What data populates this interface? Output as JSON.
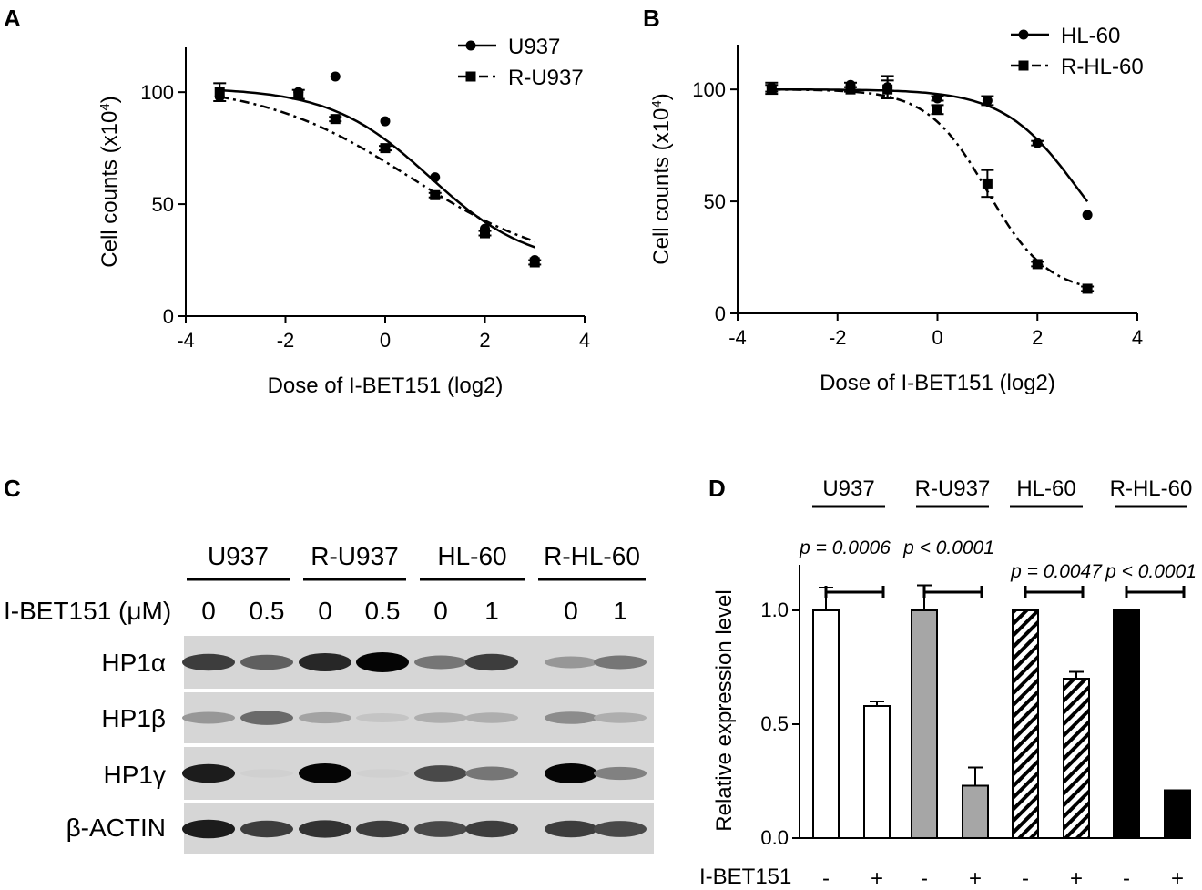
{
  "panels": {
    "A": "A",
    "B": "B",
    "C": "C",
    "D": "D"
  },
  "chart_data": [
    {
      "id": "A",
      "type": "line",
      "xlabel": "Dose of I-BET151 (log2)",
      "ylabel": "Cell counts (x10",
      "ylabel_sup": "4",
      "ylabel_end": ")",
      "xlim": [
        -4,
        4
      ],
      "ylim": [
        0,
        120
      ],
      "xticks": [
        -4,
        -2,
        0,
        2,
        4
      ],
      "yticks": [
        0,
        50,
        100
      ],
      "legend_position": "top-right",
      "series": [
        {
          "name": "U937",
          "marker": "circle",
          "line": "solid",
          "points": [
            [
              -3.32,
              98
            ],
            [
              -1.74,
              100
            ],
            [
              -1.0,
              107
            ],
            [
              0,
              87
            ],
            [
              1.0,
              62
            ],
            [
              2.0,
              39
            ],
            [
              3.0,
              25
            ]
          ],
          "errors": [
            0,
            0,
            0,
            0,
            0,
            0,
            0
          ],
          "fit": {
            "top": 102,
            "bottom": 22,
            "ec50": 0.9,
            "hill": 0.9
          }
        },
        {
          "name": "R-U937",
          "marker": "square",
          "line": "dashdot",
          "points": [
            [
              -3.32,
              100
            ],
            [
              -1.74,
              99
            ],
            [
              -1.0,
              88
            ],
            [
              0,
              75
            ],
            [
              1.0,
              54
            ],
            [
              2.0,
              37
            ],
            [
              3.0,
              24
            ]
          ],
          "errors": [
            4,
            2,
            1,
            1,
            1,
            1,
            1
          ],
          "fit": {
            "top": 104,
            "bottom": 20,
            "ec50": 0.5,
            "hill": 0.6
          }
        }
      ]
    },
    {
      "id": "B",
      "type": "line",
      "xlabel": "Dose of I-BET151 (log2)",
      "ylabel": "Cell counts (x10",
      "ylabel_sup": "4",
      "ylabel_end": ")",
      "xlim": [
        -4,
        4
      ],
      "ylim": [
        0,
        120
      ],
      "xticks": [
        -4,
        -2,
        0,
        2,
        4
      ],
      "yticks": [
        0,
        50,
        100
      ],
      "legend_position": "top-right",
      "series": [
        {
          "name": "HL-60",
          "marker": "circle",
          "line": "solid",
          "points": [
            [
              -3.32,
              101
            ],
            [
              -1.74,
              102
            ],
            [
              -1.0,
              101
            ],
            [
              0,
              96
            ],
            [
              1.0,
              95
            ],
            [
              2.0,
              76
            ],
            [
              3.0,
              44
            ]
          ],
          "errors": [
            2,
            1,
            5,
            1,
            2,
            1,
            0
          ],
          "fit": {
            "top": 100,
            "bottom": 10,
            "ec50": 2.83,
            "hill": 1.2
          }
        },
        {
          "name": "R-HL-60",
          "marker": "square",
          "line": "dashdot",
          "points": [
            [
              -3.32,
              100
            ],
            [
              -1.74,
              100
            ],
            [
              -1.0,
              100
            ],
            [
              0,
              91
            ],
            [
              1.0,
              58
            ],
            [
              2.0,
              22
            ],
            [
              3.0,
              11
            ]
          ],
          "errors": [
            2,
            1,
            4,
            2,
            6,
            1,
            1
          ],
          "fit": {
            "top": 100,
            "bottom": 9,
            "ec50": 1.0,
            "hill": 1.5
          }
        }
      ]
    },
    {
      "id": "D",
      "type": "bar",
      "ylabel": "Relative expression level",
      "ylim": [
        0,
        1.2
      ],
      "yticks": [
        0.0,
        0.5,
        1.0
      ],
      "ytick_labels": [
        "0.0",
        "0.5",
        "1.0"
      ],
      "xlabel_row_title": "I-BET151",
      "groups": [
        {
          "label": "U937",
          "pvalue": "p = 0.0006",
          "fill": "white",
          "values": [
            1.0,
            0.58
          ],
          "errors": [
            0.1,
            0.02
          ],
          "treat": [
            "-",
            "+"
          ]
        },
        {
          "label": "R-U937",
          "pvalue": "p < 0.0001",
          "fill": "gray",
          "values": [
            1.0,
            0.23
          ],
          "errors": [
            0.11,
            0.08
          ],
          "treat": [
            "-",
            "+"
          ]
        },
        {
          "label": "HL-60",
          "pvalue": "p = 0.0047",
          "fill": "hatch",
          "values": [
            1.0,
            0.7
          ],
          "errors": [
            0.0,
            0.03
          ],
          "treat": [
            "-",
            "+"
          ]
        },
        {
          "label": "R-HL-60",
          "pvalue": "p < 0.0001",
          "fill": "black",
          "values": [
            1.0,
            0.21
          ],
          "errors": [
            0.0,
            0.0
          ],
          "treat": [
            "-",
            "+"
          ]
        }
      ]
    }
  ],
  "western_blot": {
    "cell_lines": [
      "U937",
      "R-U937",
      "HL-60",
      "R-HL-60"
    ],
    "treatment_label": "I-BET151 (μM)",
    "doses": [
      "0",
      "0.5",
      "0",
      "0.5",
      "0",
      "1",
      "0",
      "1"
    ],
    "rows": [
      {
        "label": "HP1α",
        "intensity": [
          0.75,
          0.6,
          0.85,
          1.0,
          0.5,
          0.75,
          0.35,
          0.5
        ]
      },
      {
        "label": "HP1β",
        "intensity": [
          0.35,
          0.55,
          0.3,
          0.15,
          0.25,
          0.25,
          0.4,
          0.25
        ]
      },
      {
        "label": "HP1γ",
        "intensity": [
          0.9,
          0.1,
          1.0,
          0.1,
          0.7,
          0.5,
          1.0,
          0.45
        ]
      },
      {
        "label": "β-ACTIN",
        "intensity": [
          0.9,
          0.75,
          0.8,
          0.75,
          0.7,
          0.75,
          0.75,
          0.7
        ]
      }
    ]
  }
}
